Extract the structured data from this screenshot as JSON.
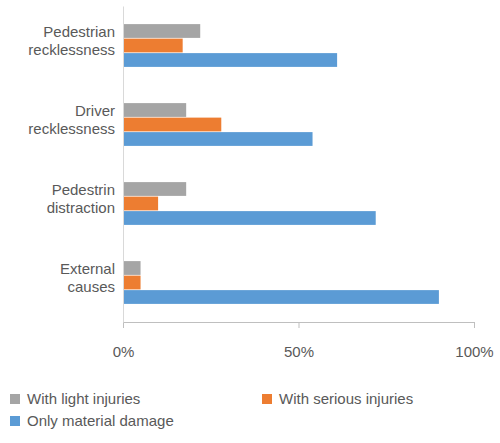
{
  "chart_data": {
    "type": "bar",
    "orientation": "horizontal",
    "categories": [
      "Pedestrian recklessness",
      "Driver recklessness",
      "Pedestrin distraction",
      "External causes"
    ],
    "series": [
      {
        "name": "With light injuries",
        "color": "#a5a5a5",
        "values": [
          22,
          18,
          18,
          5
        ]
      },
      {
        "name": "With serious injuries",
        "color": "#ed7d31",
        "values": [
          17,
          28,
          10,
          5
        ]
      },
      {
        "name": "Only material damage",
        "color": "#5b9bd5",
        "values": [
          61,
          54,
          72,
          90
        ]
      }
    ],
    "xlim": [
      0,
      100
    ],
    "xticks": [
      {
        "value": 0,
        "label": "0%"
      },
      {
        "value": 50,
        "label": "50%"
      },
      {
        "value": 100,
        "label": "100%"
      }
    ],
    "grid": false,
    "legend": "bottom"
  }
}
